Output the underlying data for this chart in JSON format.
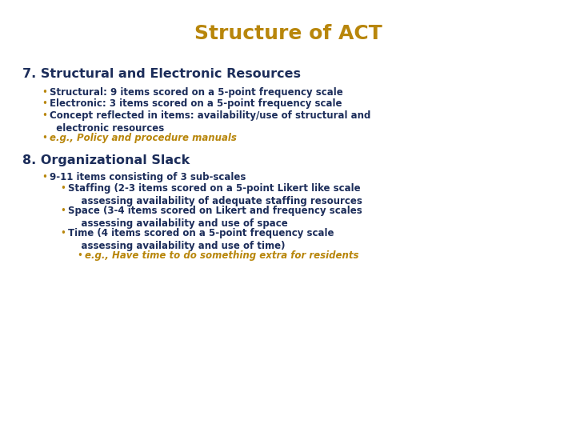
{
  "title": "Structure of ACT",
  "title_color": "#B8860B",
  "title_fontsize": 18,
  "bg_color": "#FFFFFF",
  "heading_color": "#1C2D5A",
  "body_color": "#1C2D5A",
  "italic_color": "#B8860B",
  "bullet_color": "#B8860B",
  "section7_heading": "7. Structural and Electronic Resources",
  "section7_bullets": [
    {
      "text": "Structural: 9 items scored on a 5-point frequency scale",
      "level": 1,
      "italic": false
    },
    {
      "text": "Electronic: 3 items scored on a 5-point frequency scale",
      "level": 1,
      "italic": false
    },
    {
      "text": "Concept reflected in items: availability/use of structural and\n  electronic resources",
      "level": 1,
      "italic": false
    },
    {
      "text": "e.g., Policy and procedure manuals",
      "level": 1,
      "italic": true
    }
  ],
  "section8_heading": "8. Organizational Slack",
  "section8_bullets": [
    {
      "text": "9-11 items consisting of 3 sub-scales",
      "level": 1,
      "italic": false
    },
    {
      "text": "Staffing (2-3 items scored on a 5-point Likert like scale\n    assessing availability of adequate staffing resources",
      "level": 2,
      "italic": false
    },
    {
      "text": "Space (3-4 items scored on Likert and frequency scales\n    assessing availability and use of space",
      "level": 2,
      "italic": false
    },
    {
      "text": "Time (4 items scored on a 5-point frequency scale\n    assessing availability and use of time)",
      "level": 2,
      "italic": false
    },
    {
      "text": "e.g., Have time to do something extra for residents",
      "level": 3,
      "italic": true
    }
  ]
}
